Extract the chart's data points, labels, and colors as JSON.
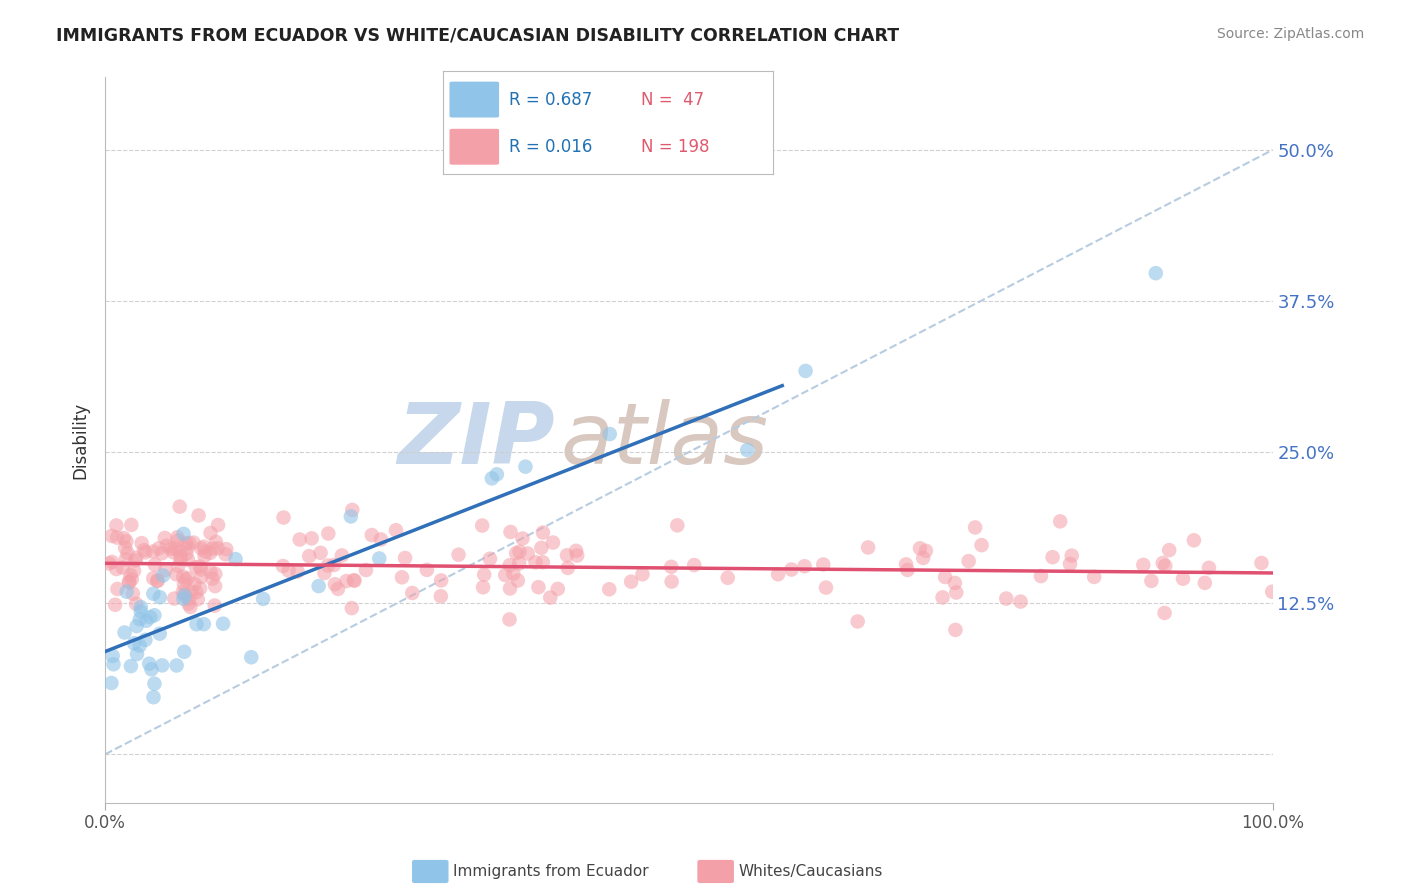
{
  "title": "IMMIGRANTS FROM ECUADOR VS WHITE/CAUCASIAN DISABILITY CORRELATION CHART",
  "source": "Source: ZipAtlas.com",
  "ylabel": "Disability",
  "xlim": [
    0,
    1.0
  ],
  "ylim": [
    -0.04,
    0.56
  ],
  "yticks": [
    0.0,
    0.125,
    0.25,
    0.375,
    0.5
  ],
  "ytick_labels": [
    "",
    "12.5%",
    "25.0%",
    "37.5%",
    "50.0%"
  ],
  "blue_R": 0.687,
  "blue_N": 47,
  "red_R": 0.016,
  "red_N": 198,
  "blue_color": "#90c4e8",
  "red_color": "#f4a0a8",
  "blue_line_color": "#3070b8",
  "red_line_color": "#e05070",
  "diag_line_color": "#b8cce0",
  "grid_color": "#cccccc",
  "watermark_zip_color": "#c8d8ec",
  "watermark_atlas_color": "#d8c8c0",
  "title_color": "#222222",
  "source_color": "#888888",
  "ylabel_color": "#333333",
  "tick_color": "#555555",
  "ytick_color": "#4472c4",
  "legend_R_color": "#2171b5",
  "legend_N_color": "#e05a6e",
  "blue_trend_x0": 0.0,
  "blue_trend_y0": 0.085,
  "blue_trend_x1": 0.58,
  "blue_trend_y1": 0.305,
  "red_trend_x0": 0.0,
  "red_trend_y0": 0.158,
  "red_trend_x1": 1.0,
  "red_trend_y1": 0.15
}
